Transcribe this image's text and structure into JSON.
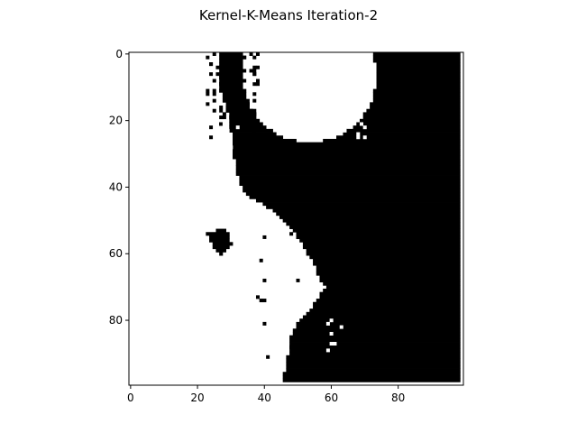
{
  "chart_data": {
    "type": "heatmap",
    "title": "Kernel-K-Means Iteration-2",
    "xlabel": "",
    "ylabel": "",
    "grid": false,
    "xlim": [
      -0.5,
      99.5
    ],
    "ylim": [
      99.5,
      -0.5
    ],
    "x_ticks": [
      0,
      20,
      40,
      60,
      80
    ],
    "y_ticks": [
      0,
      20,
      40,
      60,
      80
    ],
    "rows": 100,
    "cols": 100,
    "colors": {
      "cluster_0": "#ffffff",
      "cluster_1": "#000000"
    },
    "clusters": [
      {
        "name": "cluster_0",
        "color": "#ffffff",
        "regions": [
          {
            "shape": "left-region",
            "boundary_points": [
              [
                0,
                0
              ],
              [
                27,
                0
              ],
              [
                27,
                10
              ],
              [
                30,
                20
              ],
              [
                31,
                28
              ],
              [
                32,
                35
              ],
              [
                34,
                42
              ],
              [
                39,
                45
              ],
              [
                44,
                48
              ],
              [
                48,
                52
              ],
              [
                52,
                58
              ],
              [
                55,
                63
              ],
              [
                57,
                68
              ],
              [
                59,
                70
              ],
              [
                55,
                76
              ],
              [
                50,
                82
              ],
              [
                48,
                88
              ],
              [
                47,
                94
              ],
              [
                46,
                99
              ],
              [
                0,
                99
              ]
            ]
          },
          {
            "shape": "circle-region",
            "center": [
              54,
              7
            ],
            "radius": 20
          }
        ]
      },
      {
        "name": "cluster_1",
        "color": "#000000",
        "regions": [
          {
            "shape": "right-region",
            "boundary_points": [
              [
                70,
                0
              ],
              [
                99,
                0
              ],
              [
                99,
                99
              ],
              [
                46,
                99
              ],
              [
                48,
                88
              ],
              [
                50,
                82
              ],
              [
                55,
                76
              ],
              [
                59,
                70
              ],
              [
                57,
                68
              ],
              [
                55,
                63
              ],
              [
                52,
                58
              ],
              [
                48,
                52
              ],
              [
                44,
                48
              ],
              [
                39,
                45
              ],
              [
                34,
                42
              ],
              [
                32,
                35
              ],
              [
                31,
                28
              ],
              [
                30,
                20
              ],
              [
                27,
                10
              ],
              [
                27,
                0
              ],
              [
                34,
                0
              ],
              [
                34,
                8
              ],
              [
                39,
                17
              ],
              [
                46,
                24
              ],
              [
                56,
                27
              ],
              [
                64,
                25
              ],
              [
                69,
                18
              ],
              [
                72,
                8
              ]
            ]
          },
          {
            "shape": "blob",
            "boundary_points": [
              [
                23,
                54
              ],
              [
                29,
                53
              ],
              [
                31,
                58
              ],
              [
                28,
                61
              ],
              [
                25,
                58
              ]
            ]
          }
        ]
      }
    ]
  }
}
